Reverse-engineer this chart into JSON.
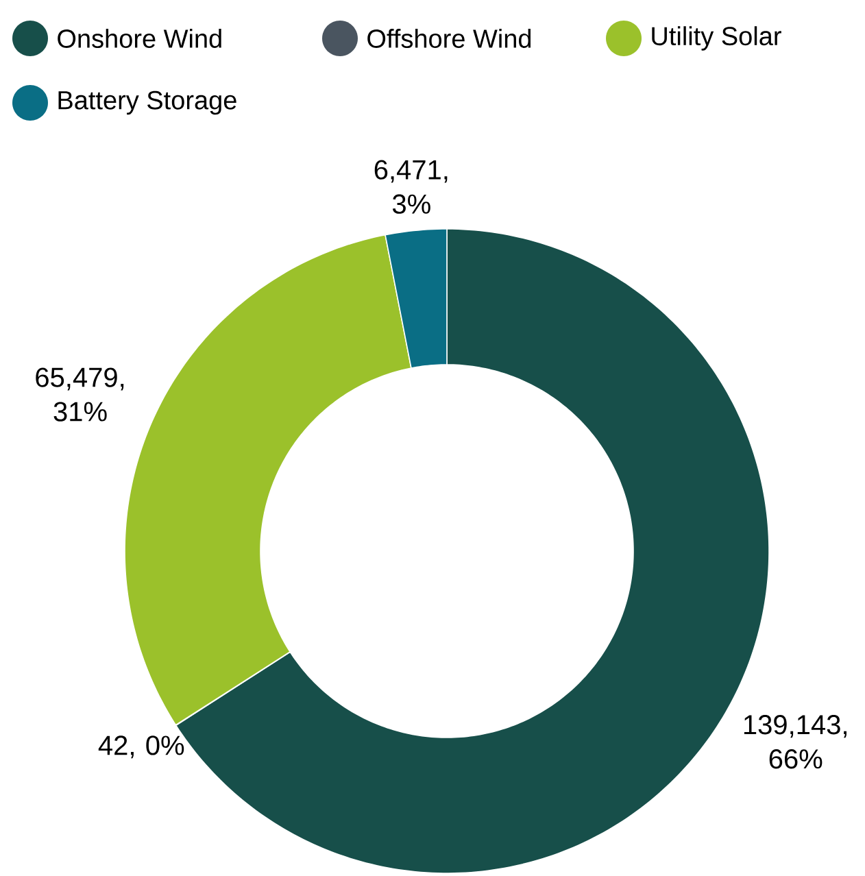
{
  "chart_data": {
    "type": "donut",
    "categories": [
      "Onshore Wind",
      "Offshore Wind",
      "Utility Solar",
      "Battery Storage"
    ],
    "values": [
      139143,
      42,
      65479,
      6471
    ],
    "colors": [
      "#174f4a",
      "#4a5560",
      "#9bc12b",
      "#0a6e85"
    ],
    "value_labels": [
      "139,143, 66%",
      "42, 0%",
      "65,479, 31%",
      "6,471, 3%"
    ],
    "legend": "top left"
  }
}
